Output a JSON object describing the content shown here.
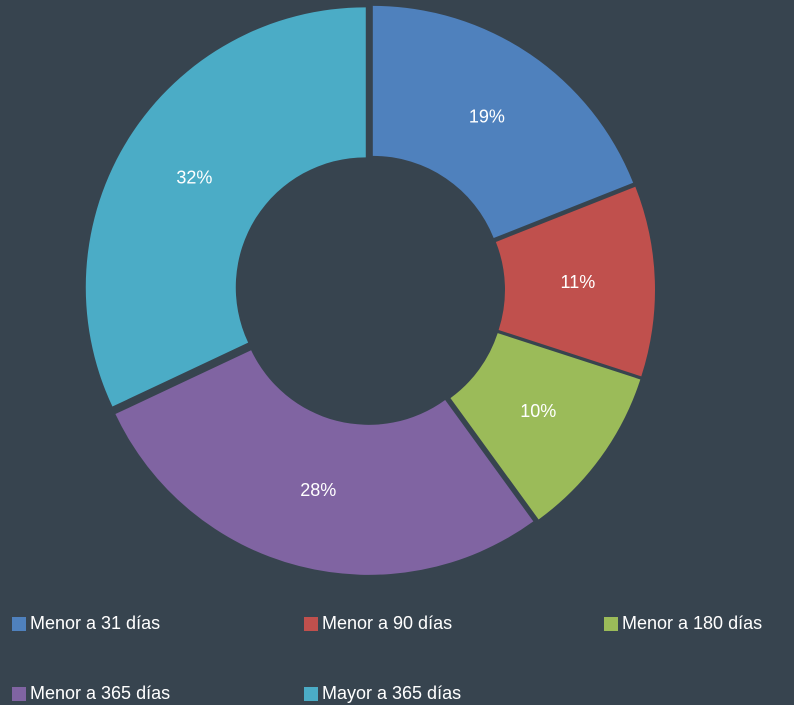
{
  "chart_data": {
    "type": "donut",
    "categories": [
      "Menor a 31 días",
      "Menor a 90 días",
      "Menor a 180 días",
      "Menor a 365 días",
      "Mayor a 365 días"
    ],
    "values": [
      19,
      11,
      10,
      28,
      32
    ],
    "value_labels": [
      "19%",
      "11%",
      "10%",
      "28%",
      "32%"
    ],
    "colors": [
      "#4f81bd",
      "#c0504d",
      "#9bbb59",
      "#8064a2",
      "#4bacc6"
    ],
    "legend": "bottom"
  }
}
